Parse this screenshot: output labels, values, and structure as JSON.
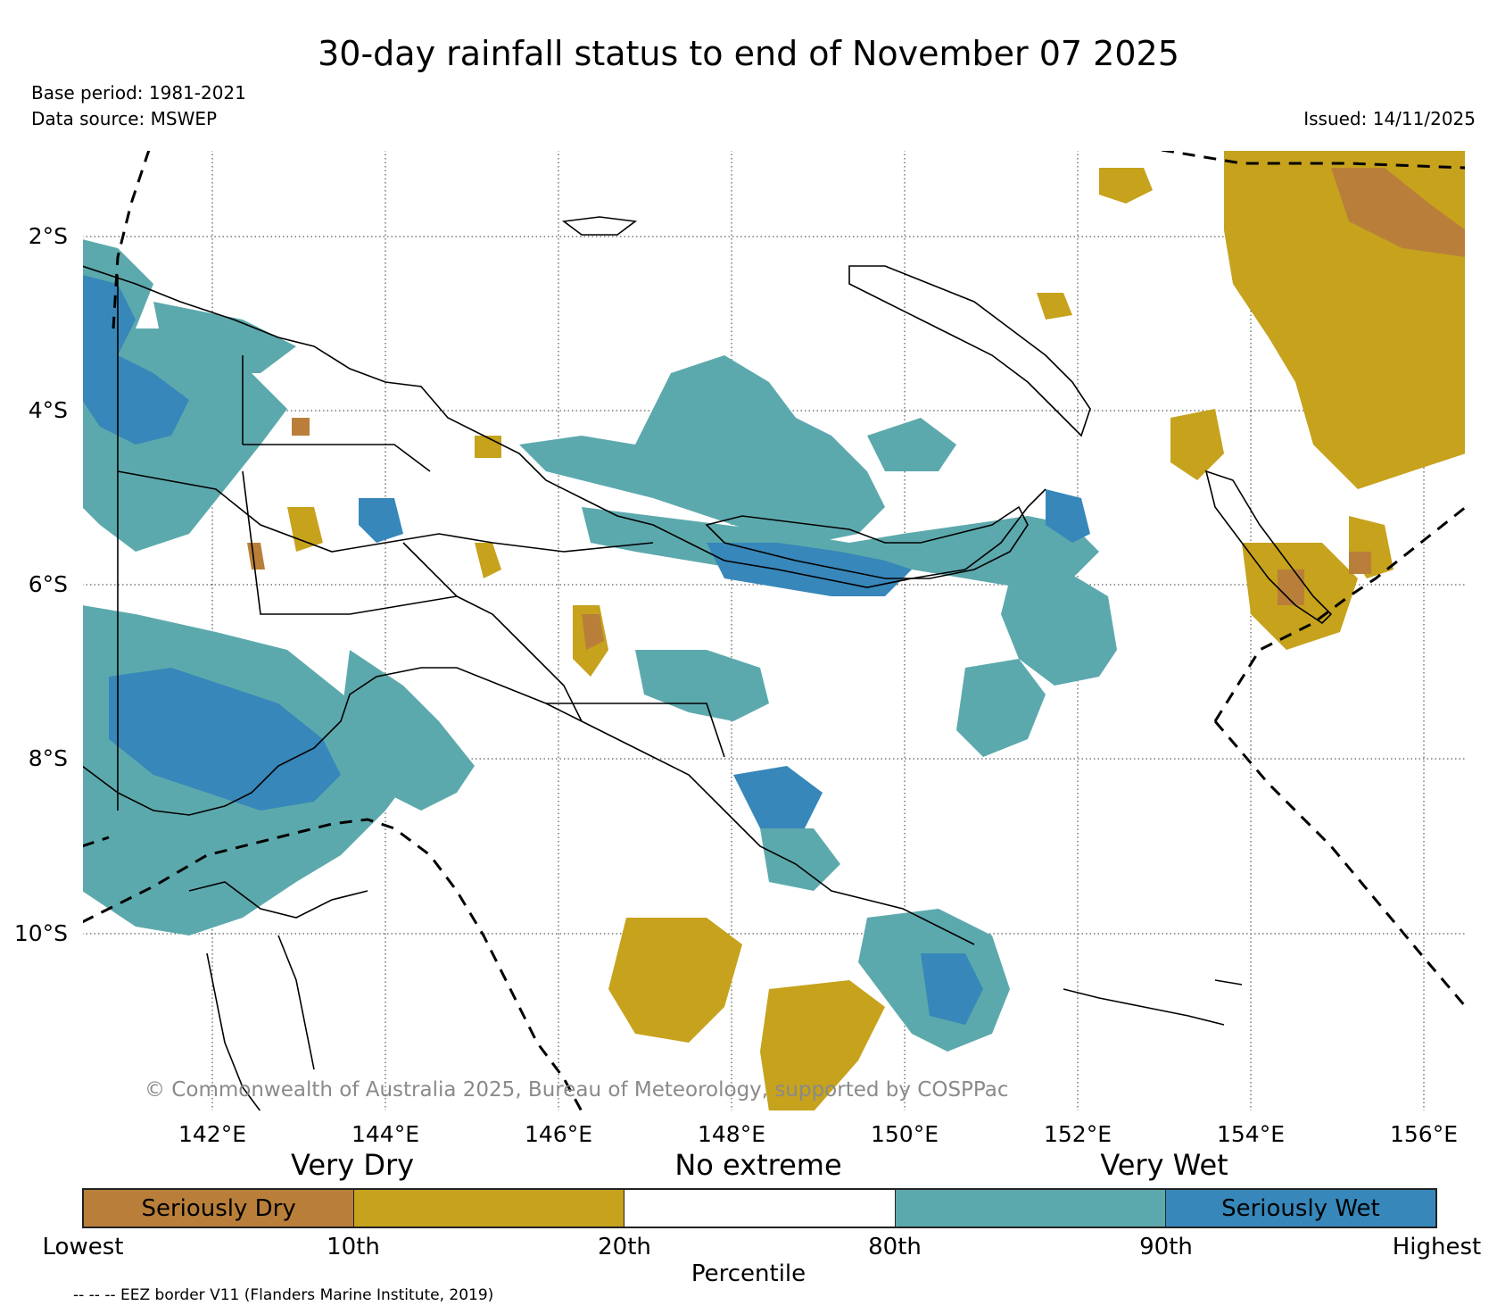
{
  "title": "30-day rainfall status to end of November 07 2025",
  "base_period": "Base period: 1981-2021",
  "data_source": "Data source: MSWEP",
  "issued": "Issued: 14/11/2025",
  "copyright": "© Commonwealth of Australia 2025, Bureau of Meteorology, supported by COSPPac",
  "latitude_labels": [
    "2°S",
    "4°S",
    "6°S",
    "8°S",
    "10°S"
  ],
  "longitude_labels": [
    "142°E",
    "144°E",
    "146°E",
    "148°E",
    "150°E",
    "152°E",
    "154°E",
    "156°E"
  ],
  "legend": {
    "category_labels": [
      "Very Dry",
      "No extreme",
      "Very Wet"
    ],
    "segments": [
      {
        "label": "Seriously Dry",
        "color": "#b97f3a"
      },
      {
        "label": "",
        "color": "#c6a21d"
      },
      {
        "label": "",
        "color": "#ffffff"
      },
      {
        "label": "",
        "color": "#5ca9ad"
      },
      {
        "label": "Seriously Wet",
        "color": "#3787ba"
      }
    ],
    "percentile_labels": [
      "Lowest",
      "10th",
      "20th",
      "80th",
      "90th",
      "Highest"
    ],
    "percentile_title": "Percentile"
  },
  "eez_note": "-- -- -- EEZ border V11 (Flanders Marine Institute, 2019)"
}
